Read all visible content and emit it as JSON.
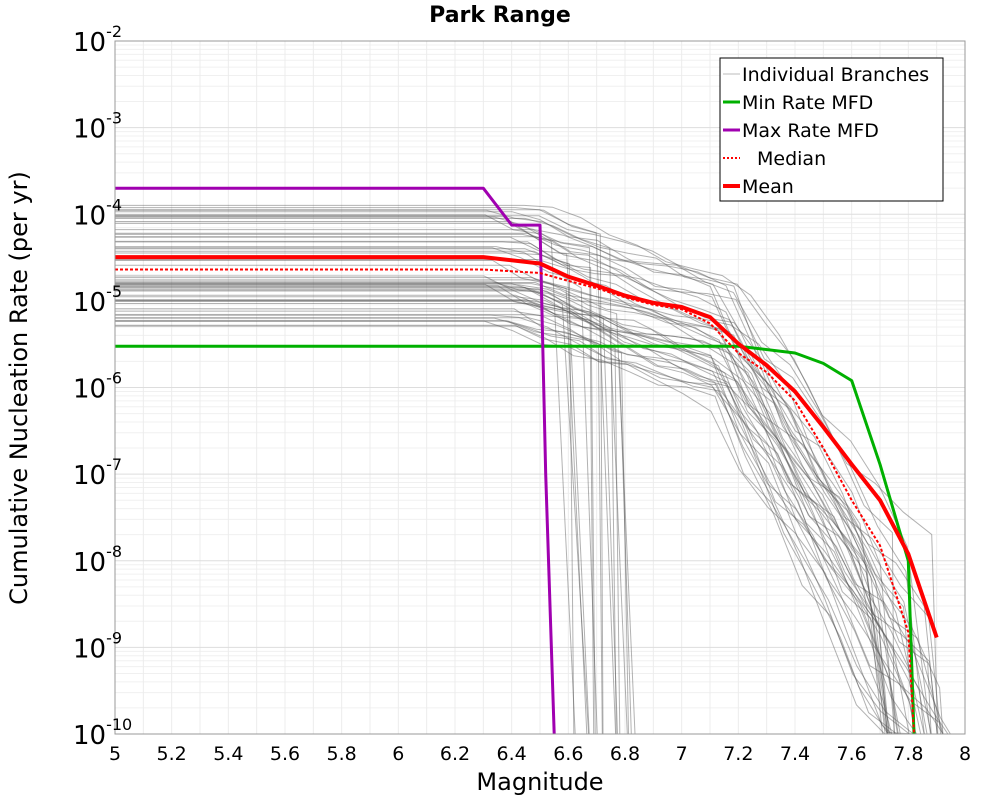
{
  "chart_data": {
    "type": "line",
    "title": "Park Range",
    "xlabel": "Magnitude",
    "ylabel": "Cumulative Nucleation Rate (per yr)",
    "xlim": [
      5,
      8
    ],
    "ylim": [
      1e-10,
      0.01
    ],
    "yscale": "log",
    "grid": true,
    "legend_position": "top-right",
    "x_ticks": [
      "5",
      "5.2",
      "5.4",
      "5.6",
      "5.8",
      "6",
      "6.2",
      "6.4",
      "6.6",
      "6.8",
      "7",
      "7.2",
      "7.4",
      "7.6",
      "7.8",
      "8"
    ],
    "y_ticks": [
      {
        "base": "10",
        "exp": "-2"
      },
      {
        "base": "10",
        "exp": "-3"
      },
      {
        "base": "10",
        "exp": "-4"
      },
      {
        "base": "10",
        "exp": "-5"
      },
      {
        "base": "10",
        "exp": "-6"
      },
      {
        "base": "10",
        "exp": "-7"
      },
      {
        "base": "10",
        "exp": "-8"
      },
      {
        "base": "10",
        "exp": "-9"
      },
      {
        "base": "10",
        "exp": "-10"
      }
    ],
    "series": [
      {
        "name": "Min Rate MFD",
        "color": "#00b000",
        "x": [
          5.0,
          6.0,
          7.0,
          7.2,
          7.4,
          7.5,
          7.6,
          7.7,
          7.8,
          7.82
        ],
        "y": [
          3e-06,
          3e-06,
          3e-06,
          3e-06,
          2.5e-06,
          1.9e-06,
          1.2e-06,
          1.3e-07,
          1e-08,
          1e-10
        ]
      },
      {
        "name": "Max Rate MFD",
        "color": "#a000b0",
        "x": [
          5.0,
          6.0,
          6.3,
          6.4,
          6.5,
          6.52,
          6.55
        ],
        "y": [
          0.0002,
          0.0002,
          0.0002,
          7.5e-05,
          7.5e-05,
          1e-07,
          1e-10
        ]
      },
      {
        "name": "Median",
        "color": "#ff0000",
        "dashed": true,
        "x": [
          5.0,
          6.0,
          6.3,
          6.5,
          6.6,
          6.7,
          6.8,
          6.9,
          7.0,
          7.1,
          7.2,
          7.3,
          7.4,
          7.5,
          7.6,
          7.7,
          7.8,
          7.82
        ],
        "y": [
          2.3e-05,
          2.3e-05,
          2.3e-05,
          2.1e-05,
          1.7e-05,
          1.4e-05,
          1.1e-05,
          9e-06,
          8e-06,
          5.5e-06,
          2.5e-06,
          1.5e-06,
          7e-07,
          2e-07,
          5e-08,
          1.5e-08,
          1.5e-09,
          1e-10
        ]
      },
      {
        "name": "Mean",
        "color": "#ff0000",
        "x": [
          5.0,
          6.0,
          6.3,
          6.5,
          6.6,
          6.7,
          6.8,
          6.9,
          7.0,
          7.1,
          7.2,
          7.3,
          7.4,
          7.5,
          7.6,
          7.7,
          7.8,
          7.9
        ],
        "y": [
          3.2e-05,
          3.2e-05,
          3.2e-05,
          2.7e-05,
          1.9e-05,
          1.5e-05,
          1.15e-05,
          9.5e-06,
          8.5e-06,
          6.5e-06,
          3.2e-06,
          1.8e-06,
          9e-07,
          3.5e-07,
          1.3e-07,
          5e-08,
          1.2e-08,
          1.3e-09
        ]
      }
    ],
    "individual_branches": {
      "name": "Individual Branches",
      "color": "#555555",
      "count_drawn": 60,
      "plateau_range": [
        5e-06,
        0.00014
      ],
      "end_magnitude_range": [
        6.55,
        7.95
      ],
      "floor_value": 1e-10
    },
    "legend": [
      {
        "label": "Individual Branches",
        "color": "#bbbbbb",
        "style": "thin"
      },
      {
        "label": "Min Rate MFD",
        "color": "#00b000",
        "style": "solid"
      },
      {
        "label": "Max Rate MFD",
        "color": "#a000b0",
        "style": "solid"
      },
      {
        "label": "Median",
        "color": "#ff0000",
        "style": "dotted"
      },
      {
        "label": "Mean",
        "color": "#ff0000",
        "style": "thick"
      }
    ]
  }
}
